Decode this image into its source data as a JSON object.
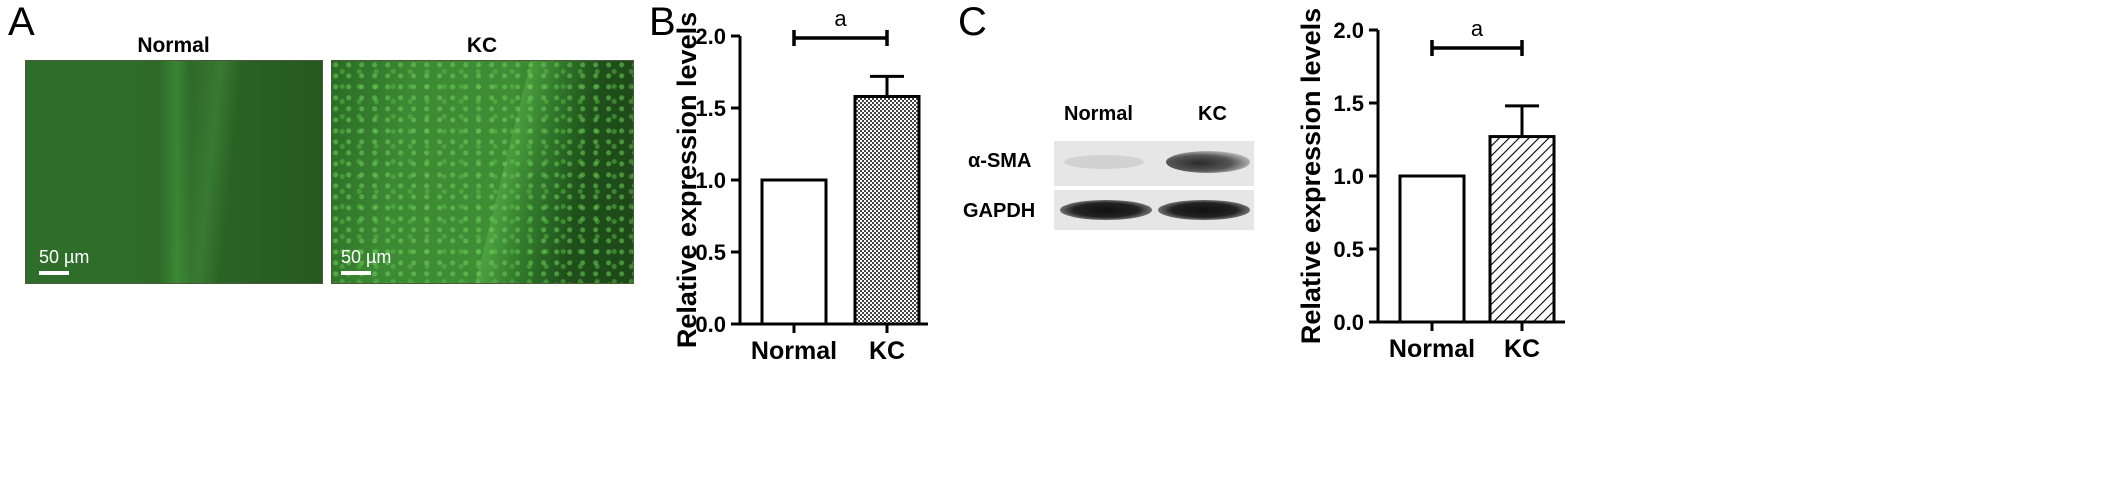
{
  "panel_a": {
    "letter": "A",
    "left_title": "Normal",
    "right_title": "KC",
    "scale_left": "50 µm",
    "scale_right": "50 µm"
  },
  "panel_b": {
    "letter": "B"
  },
  "panel_c": {
    "letter": "C",
    "lane_labels": [
      "Normal",
      "KC"
    ],
    "row_labels": [
      "α-SMA",
      "GAPDH"
    ]
  },
  "chart_data": [
    {
      "type": "bar",
      "panel": "B",
      "categories": [
        "Normal",
        "KC"
      ],
      "values": [
        1.0,
        1.58
      ],
      "error_plus": [
        0,
        0.14
      ],
      "ylabel": "Relative expression levels",
      "xlabel": "",
      "ylim": [
        0,
        2.0
      ],
      "yticks": [
        "0.0",
        "0.5",
        "1.0",
        "1.5",
        "2.0"
      ],
      "significance": {
        "label": "a",
        "between": [
          "Normal",
          "KC"
        ]
      },
      "fills": [
        "white",
        "crosshatch"
      ]
    },
    {
      "type": "bar",
      "panel": "C",
      "categories": [
        "Normal",
        "KC"
      ],
      "values": [
        1.0,
        1.27
      ],
      "error_plus": [
        0,
        0.21
      ],
      "ylabel": "Relative expression levels",
      "xlabel": "",
      "ylim": [
        0,
        2.0
      ],
      "yticks": [
        "0.0",
        "0.5",
        "1.0",
        "1.5",
        "2.0"
      ],
      "significance": {
        "label": "a",
        "between": [
          "Normal",
          "KC"
        ]
      },
      "fills": [
        "white",
        "diagonal"
      ]
    }
  ]
}
